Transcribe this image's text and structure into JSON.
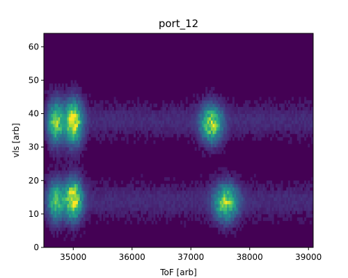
{
  "chart_data": {
    "type": "heatmap",
    "title": "port_12",
    "xlabel": "ToF [arb]",
    "ylabel": "vls [arb]",
    "xlim": [
      34500,
      39080
    ],
    "ylim": [
      0,
      64
    ],
    "xticks": [
      35000,
      36000,
      37000,
      38000,
      39000
    ],
    "yticks": [
      0,
      10,
      20,
      30,
      40,
      50,
      60
    ],
    "colormap": "viridis",
    "grid": false,
    "blobs": [
      {
        "x_center": 34700,
        "x_width": 130,
        "y_center": 37.5,
        "y_width": 6.5,
        "intensity": 0.72
      },
      {
        "x_center": 35000,
        "x_width": 150,
        "y_center": 37.5,
        "y_width": 6.5,
        "intensity": 0.95
      },
      {
        "x_center": 34700,
        "x_width": 130,
        "y_center": 14.0,
        "y_width": 6.0,
        "intensity": 0.65
      },
      {
        "x_center": 35000,
        "x_width": 150,
        "y_center": 14.5,
        "y_width": 6.0,
        "intensity": 0.95
      },
      {
        "x_center": 37350,
        "x_width": 180,
        "y_center": 37.0,
        "y_width": 5.5,
        "intensity": 0.8
      },
      {
        "x_center": 37600,
        "x_width": 200,
        "y_center": 13.5,
        "y_width": 5.5,
        "intensity": 0.75
      }
    ],
    "background_level": 0.06,
    "streak_y_centers": [
      14,
      38
    ],
    "streak_level": 0.1
  }
}
